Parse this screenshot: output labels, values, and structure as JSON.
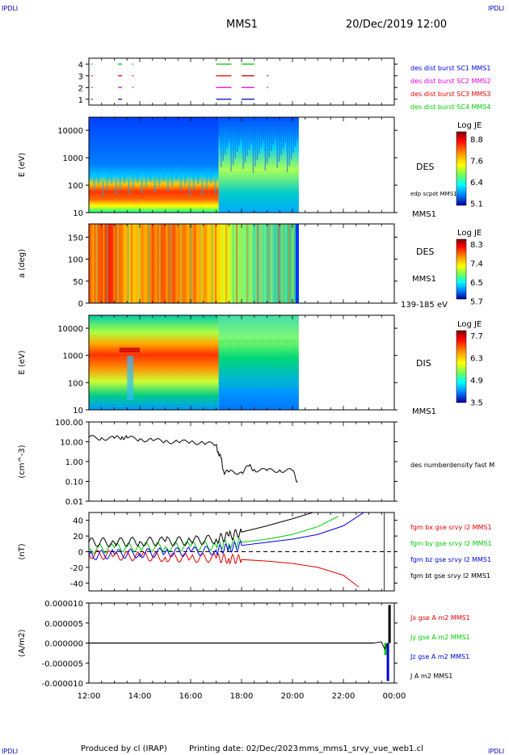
{
  "header": {
    "corner_left": "IPDLI",
    "corner_right": "IPDLI",
    "spacecraft": "MMS1",
    "date_time": "20/Dec/2019 12:00"
  },
  "footer": {
    "produced_by": "Produced by cl (IRAP)",
    "printing_date": "Printing date: 02/Dec/2023",
    "file_name": "mms_mms1_srvy_vue_web1.cl",
    "corner_left": "IPDLI",
    "corner_right": "IPDLI"
  },
  "colors": {
    "red": "#e00000",
    "green": "#00cc00",
    "blue": "#0000e0",
    "black": "#000000",
    "magenta": "#e000e0",
    "dark_blue": "#0000c0"
  },
  "chart_data": [
    {
      "type": "line",
      "panel": "burst-availability",
      "yticks": [
        "1",
        "2",
        "3",
        "4"
      ],
      "ylim": [
        0.5,
        4.5
      ],
      "legend": [
        {
          "name": "des dist burst SC1 MMS1",
          "color": "#0000e0"
        },
        {
          "name": "des dist burst SC2 MMS2",
          "color": "#e000e0"
        },
        {
          "name": "des dist burst SC3 MMS3",
          "color": "#e00000"
        },
        {
          "name": "des dist burst SC4 MMS4",
          "color": "#00cc00"
        }
      ],
      "intervals": [
        {
          "level": 4,
          "color": "#00cc00",
          "ranges": [
            [
              12.1,
              12.15
            ],
            [
              13.15,
              13.3
            ],
            [
              13.7,
              13.75
            ],
            [
              17.0,
              17.6
            ],
            [
              18.0,
              18.5
            ]
          ]
        },
        {
          "level": 3,
          "color": "#e00000",
          "ranges": [
            [
              12.1,
              12.15
            ],
            [
              13.15,
              13.3
            ],
            [
              13.7,
              13.75
            ],
            [
              17.0,
              17.6
            ],
            [
              18.0,
              18.5
            ],
            [
              19.0,
              19.05
            ]
          ]
        },
        {
          "level": 2,
          "color": "#e000e0",
          "ranges": [
            [
              12.1,
              12.15
            ],
            [
              13.15,
              13.3
            ],
            [
              13.7,
              13.75
            ],
            [
              17.0,
              17.6
            ],
            [
              18.0,
              18.5
            ],
            [
              19.0,
              19.05
            ]
          ]
        },
        {
          "level": 1,
          "color": "#0000c0",
          "ranges": [
            [
              12.1,
              12.15
            ],
            [
              13.15,
              13.3
            ],
            [
              17.0,
              17.6
            ],
            [
              18.0,
              18.5
            ]
          ]
        }
      ]
    },
    {
      "type": "heatmap",
      "panel": "des-energy",
      "ylabel": "E (eV)",
      "yscale": "log",
      "ylim": [
        10,
        30000
      ],
      "yticks": [
        "10",
        "100",
        "1000",
        "10000"
      ],
      "label": "DES",
      "sublabel": "MMS1",
      "overlay_label": "edp scpot MMS1",
      "colorbar": {
        "title": "Log JE",
        "ticks": [
          "8.8",
          "7.6",
          "6.4",
          "5.1"
        ]
      },
      "data_end_time": 20.25
    },
    {
      "type": "heatmap",
      "panel": "des-pitch-angle",
      "ylabel": "a (deg)",
      "ylim": [
        0,
        180
      ],
      "yticks": [
        "0",
        "50",
        "100",
        "150"
      ],
      "label": "DES",
      "sublabel": "MMS1",
      "energy_range": "139-185 eV",
      "colorbar": {
        "title": "Log JE",
        "ticks": [
          "8.3",
          "7.4",
          "6.5",
          "5.7"
        ]
      },
      "data_end_time": 20.25
    },
    {
      "type": "heatmap",
      "panel": "dis-energy",
      "ylabel": "E (eV)",
      "yscale": "log",
      "ylim": [
        10,
        30000
      ],
      "yticks": [
        "10",
        "100",
        "1000",
        "10000"
      ],
      "label": "DIS",
      "sublabel": "MMS1",
      "colorbar": {
        "title": "Log JE",
        "ticks": [
          "7.7",
          "6.3",
          "4.9",
          "3.5"
        ]
      },
      "data_end_time": 20.25
    },
    {
      "type": "line",
      "panel": "density",
      "ylabel": "(cm^-3)",
      "yscale": "log",
      "ylim": [
        0.01,
        100
      ],
      "yticks": [
        "0.01",
        "0.10",
        "1.00",
        "10.00",
        "100.00"
      ],
      "series": [
        {
          "name": "des numberdensity fast M",
          "color": "#000000",
          "x": [
            12.0,
            12.5,
            13.0,
            13.3,
            13.5,
            14.0,
            14.5,
            15.0,
            15.5,
            16.0,
            16.5,
            17.0,
            17.1,
            17.2,
            17.3,
            17.5,
            18.0,
            18.3,
            18.5,
            19.0,
            19.5,
            20.0,
            20.2
          ],
          "y": [
            17,
            16,
            15,
            18,
            16,
            14,
            12,
            11,
            10,
            10,
            9,
            7,
            2.5,
            1.5,
            0.3,
            0.3,
            0.3,
            0.6,
            0.4,
            0.35,
            0.38,
            0.35,
            0.1
          ]
        }
      ]
    },
    {
      "type": "line",
      "panel": "magnetic-field",
      "ylabel": "(nT)",
      "ylim": [
        -50,
        50
      ],
      "yticks": [
        "-40",
        "-20",
        "0",
        "20",
        "40"
      ],
      "series": [
        {
          "name": "fgm bx gse srvy l2 MMS1",
          "color": "#e00000",
          "x": [
            12,
            13,
            14,
            15,
            16,
            17,
            17.5,
            18,
            19,
            20,
            21,
            22,
            22.6
          ],
          "y": [
            -3,
            -5,
            -6,
            -7,
            -8,
            -8,
            -9,
            -10,
            -12,
            -15,
            -20,
            -30,
            -45
          ]
        },
        {
          "name": "fgm by gse srvy l2 MMS1",
          "color": "#00cc00",
          "x": [
            12,
            13,
            14,
            15,
            16,
            17,
            17.5,
            18,
            19,
            20,
            21,
            21.8
          ],
          "y": [
            3,
            5,
            6,
            6,
            7,
            8,
            10,
            12,
            16,
            22,
            32,
            45
          ]
        },
        {
          "name": "fgm bz gse srvy l2 MMS1",
          "color": "#0000e0",
          "x": [
            12,
            13,
            14,
            15,
            16,
            17,
            17.5,
            18,
            19,
            20,
            21,
            22,
            22.8
          ],
          "y": [
            -5,
            -3,
            -2,
            -1,
            0,
            2,
            5,
            8,
            12,
            16,
            22,
            33,
            50
          ]
        },
        {
          "name": "fgm bt gse srvy l2 MMS1",
          "color": "#000000",
          "x": [
            12,
            13,
            14,
            15,
            16,
            17,
            17.5,
            18,
            19,
            20,
            20.8
          ],
          "y": [
            12,
            12,
            13,
            13,
            14,
            16,
            20,
            25,
            33,
            42,
            50
          ]
        }
      ]
    },
    {
      "type": "line",
      "panel": "current-density",
      "ylabel": "(A/m2)",
      "ylim": [
        -1e-05,
        1e-05
      ],
      "yticks": [
        "-0.000010",
        "-0.000005",
        "0.000000",
        "0.000005",
        "0.000010"
      ],
      "series": [
        {
          "name": "Jx gse A m2 MMS1",
          "color": "#e00000"
        },
        {
          "name": "Jy gse A m2 MMS1",
          "color": "#00cc00"
        },
        {
          "name": "Jz gse A m2 MMS1",
          "color": "#0000e0"
        },
        {
          "name": "J A m2 MMS1",
          "color": "#000000"
        }
      ]
    }
  ],
  "xaxis": {
    "xlim": [
      12,
      24
    ],
    "ticks": [
      "12:00",
      "14:00",
      "16:00",
      "18:00",
      "20:00",
      "22:00",
      "00:00"
    ]
  }
}
